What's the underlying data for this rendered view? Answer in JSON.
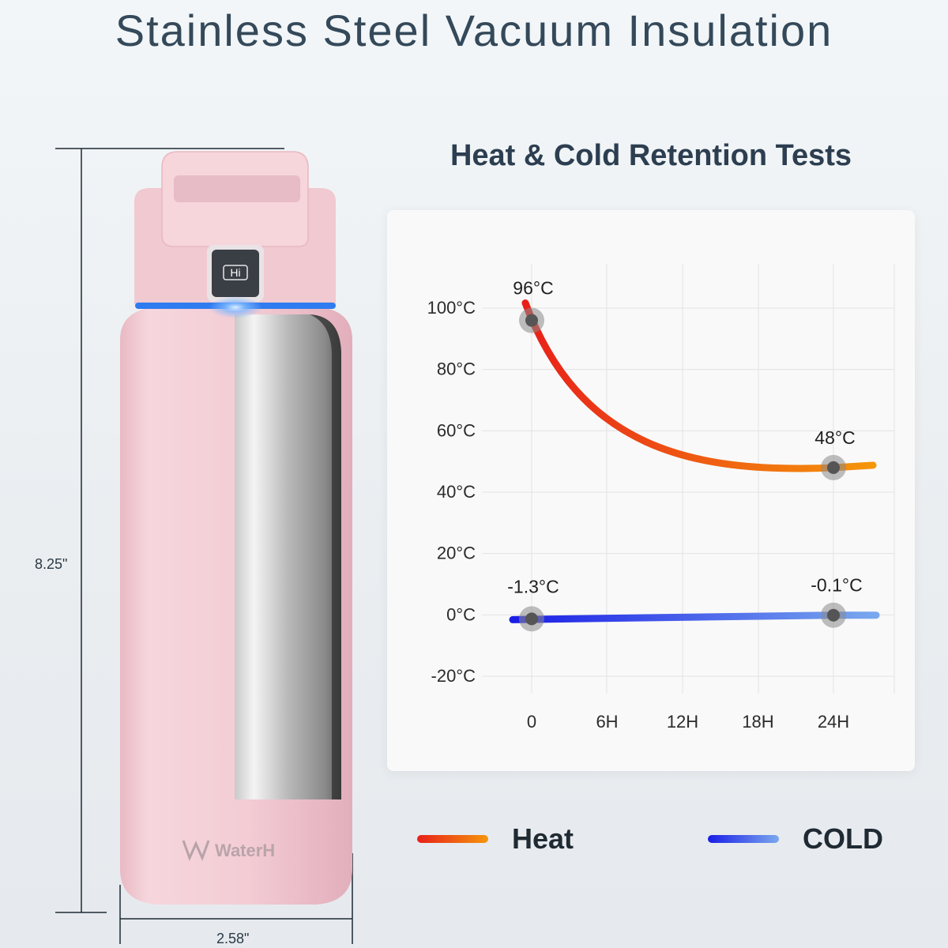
{
  "page": {
    "title": "Stainless Steel Vacuum Insulation"
  },
  "product": {
    "brand": "WaterH",
    "display_text": "Hi",
    "height_label": "8.25\"",
    "width_label": "2.58\""
  },
  "colors": {
    "bottle_pink": "#f3cfd6",
    "accent_ring": "#2f7cf0",
    "heat_start": "#e8201a",
    "heat_end": "#f5960a",
    "cold_start": "#1a1ee6",
    "cold_end": "#7aa8ee"
  },
  "legend": {
    "heat_label": "Heat",
    "cold_label": "COLD"
  },
  "chart_data": {
    "type": "line",
    "title": "Heat & Cold Retention Tests",
    "xlabel": "",
    "ylabel": "",
    "x_categories": [
      "0",
      "6H",
      "12H",
      "18H",
      "24H"
    ],
    "x_hours": [
      0,
      6,
      12,
      18,
      24
    ],
    "y_ticks": [
      "100°C",
      "80°C",
      "60°C",
      "40°C",
      "20°C",
      "0°C",
      "-20°C"
    ],
    "y_tick_values": [
      100,
      80,
      60,
      40,
      20,
      0,
      -20
    ],
    "ylim": [
      -20,
      100
    ],
    "xlim": [
      0,
      24
    ],
    "grid": true,
    "legend_position": "bottom",
    "series": [
      {
        "name": "Heat",
        "points": [
          {
            "x": 0,
            "y": 96,
            "label": "96°C",
            "marked": true
          },
          {
            "x": 24,
            "y": 48,
            "label": "48°C",
            "marked": true
          }
        ]
      },
      {
        "name": "COLD",
        "points": [
          {
            "x": 0,
            "y": -1.3,
            "label": "-1.3°C",
            "marked": true
          },
          {
            "x": 24,
            "y": -0.1,
            "label": "-0.1°C",
            "marked": true
          }
        ]
      }
    ]
  }
}
